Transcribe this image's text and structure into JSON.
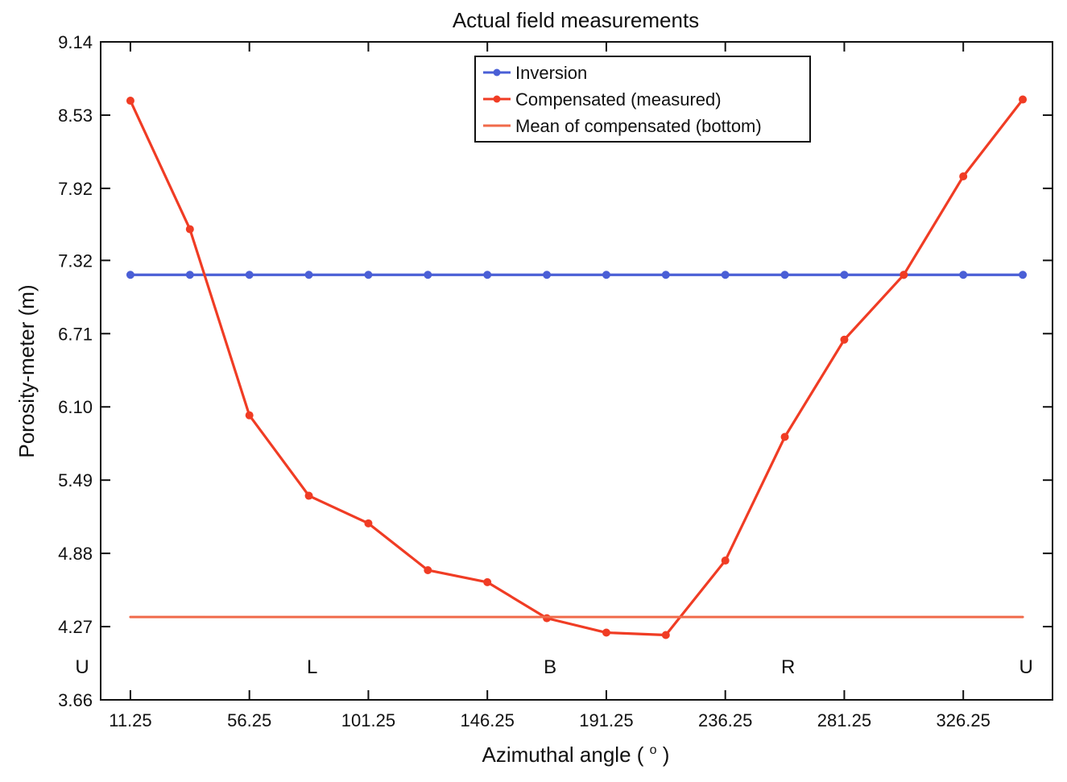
{
  "chart_data": {
    "type": "line",
    "title": "Actual field measurements",
    "xlabel": "Azimuthal angle (",
    "xlabel_superscript": "o",
    "xlabel_suffix": ")",
    "ylabel": "Porosity-meter (m)",
    "xlim": [
      0,
      360
    ],
    "ylim": [
      3.66,
      9.14
    ],
    "x_ticks": [
      11.25,
      56.25,
      101.25,
      146.25,
      191.25,
      236.25,
      281.25,
      326.25
    ],
    "x_tick_labels": [
      "11.25",
      "56.25",
      "101.25",
      "146.25",
      "191.25",
      "236.25",
      "281.25",
      "326.25"
    ],
    "y_ticks": [
      3.66,
      4.27,
      4.88,
      5.49,
      6.1,
      6.71,
      7.32,
      7.92,
      8.53,
      9.14
    ],
    "y_tick_labels": [
      "3.66",
      "4.27",
      "4.88",
      "5.49",
      "6.10",
      "6.71",
      "7.32",
      "7.92",
      "8.53",
      "9.14"
    ],
    "x": [
      11.25,
      33.75,
      56.25,
      78.75,
      101.25,
      123.75,
      146.25,
      168.75,
      191.25,
      213.75,
      236.25,
      258.75,
      281.25,
      303.75,
      326.25,
      348.75
    ],
    "series": [
      {
        "name": "Inversion",
        "color": "#4a5fd6",
        "marker": true,
        "values": [
          7.2,
          7.2,
          7.2,
          7.2,
          7.2,
          7.2,
          7.2,
          7.2,
          7.2,
          7.2,
          7.2,
          7.2,
          7.2,
          7.2,
          7.2,
          7.2
        ]
      },
      {
        "name": "Compensated (measured)",
        "color": "#f03c24",
        "marker": true,
        "values": [
          8.65,
          7.58,
          6.03,
          5.36,
          5.13,
          4.74,
          4.64,
          4.34,
          4.22,
          4.2,
          4.82,
          5.85,
          6.66,
          7.2,
          8.02,
          8.66
        ]
      },
      {
        "name": "Mean of compensated (bottom)",
        "color": "#f06a4a",
        "marker": false,
        "values": [
          4.35,
          4.35,
          4.35,
          4.35,
          4.35,
          4.35,
          4.35,
          4.35,
          4.35,
          4.35,
          4.35,
          4.35,
          4.35,
          4.35,
          4.35,
          4.35
        ]
      }
    ],
    "annotations": [
      {
        "text": "U",
        "x": -7,
        "y": 3.88
      },
      {
        "text": "L",
        "x": 80,
        "y": 3.88
      },
      {
        "text": "B",
        "x": 170,
        "y": 3.88
      },
      {
        "text": "R",
        "x": 260,
        "y": 3.88
      },
      {
        "text": "U",
        "x": 350,
        "y": 3.88
      }
    ],
    "legend_position": "top-center",
    "grid": false
  }
}
